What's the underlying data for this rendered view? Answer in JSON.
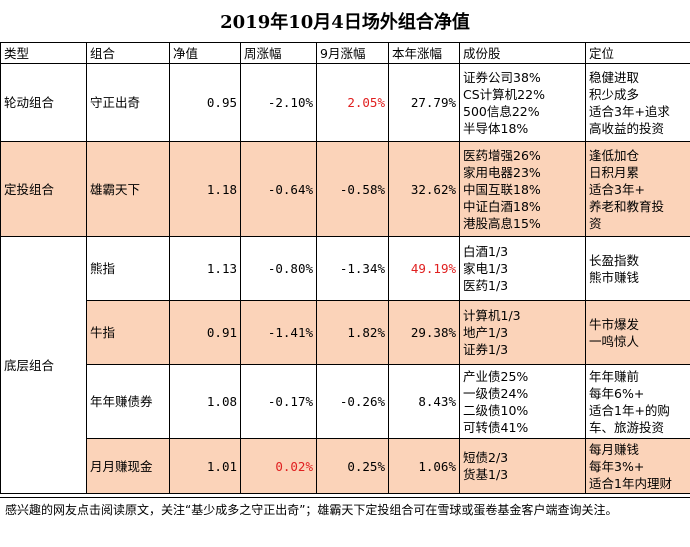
{
  "title": "2019年10月4日场外组合净值",
  "headers": [
    "类型",
    "组合",
    "净值",
    "周涨幅",
    "9月涨幅",
    "本年涨幅",
    "成份股",
    "定位"
  ],
  "colors": {
    "highlight": "#fbd3b9",
    "red": "#e02020"
  },
  "groups": {
    "g1": "轮动组合",
    "g2": "定投组合",
    "g3": "底层组合"
  },
  "rows": [
    {
      "name": "守正出奇",
      "nav": "0.95",
      "week": "-2.10%",
      "sep": "2.05%",
      "ytd": "27.79%",
      "holdings": [
        "证券公司38%",
        "CS计算机22%",
        "500信息22%",
        "半导体18%"
      ],
      "position": [
        "稳健进取",
        "积少成多",
        "适合3年+追求",
        "高收益的投资"
      ]
    },
    {
      "name": "雄霸天下",
      "nav": "1.18",
      "week": "-0.64%",
      "sep": "-0.58%",
      "ytd": "32.62%",
      "holdings": [
        "医药增强26%",
        "家用电器23%",
        "中国互联18%",
        "中证白酒18%",
        "港股高息15%"
      ],
      "position": [
        "逢低加仓",
        "日积月累",
        "适合3年+",
        "养老和教育投",
        "资"
      ]
    },
    {
      "name": "熊指",
      "nav": "1.13",
      "week": "-0.80%",
      "sep": "-1.34%",
      "ytd": "49.19%",
      "holdings": [
        "白酒1/3",
        "家电1/3",
        "医药1/3"
      ],
      "position": [
        "长盈指数",
        "熊市赚钱"
      ]
    },
    {
      "name": "牛指",
      "nav": "0.91",
      "week": "-1.41%",
      "sep": "1.82%",
      "ytd": "29.38%",
      "holdings": [
        "计算机1/3",
        "地产1/3",
        "证券1/3"
      ],
      "position": [
        "牛市爆发",
        "一鸣惊人"
      ]
    },
    {
      "name": "年年赚债券",
      "nav": "1.08",
      "week": "-0.17%",
      "sep": "-0.26%",
      "ytd": "8.43%",
      "holdings": [
        "产业债25%",
        "一级债24%",
        "二级债10%",
        "可转债41%"
      ],
      "position": [
        "年年赚前",
        "每年6%+",
        "适合1年+的购",
        "车、旅游投资"
      ]
    },
    {
      "name": "月月赚现金",
      "nav": "1.01",
      "week": "0.02%",
      "sep": "0.25%",
      "ytd": "1.06%",
      "holdings": [
        "短债2/3",
        "货基1/3"
      ],
      "position": [
        "每月赚钱",
        "每年3%+",
        "适合1年内理财"
      ]
    }
  ],
  "footer": "感兴趣的网友点击阅读原文，关注“基少成多之守正出奇”；雄霸天下定投组合可在雪球或蛋卷基金客户端查询关注。"
}
